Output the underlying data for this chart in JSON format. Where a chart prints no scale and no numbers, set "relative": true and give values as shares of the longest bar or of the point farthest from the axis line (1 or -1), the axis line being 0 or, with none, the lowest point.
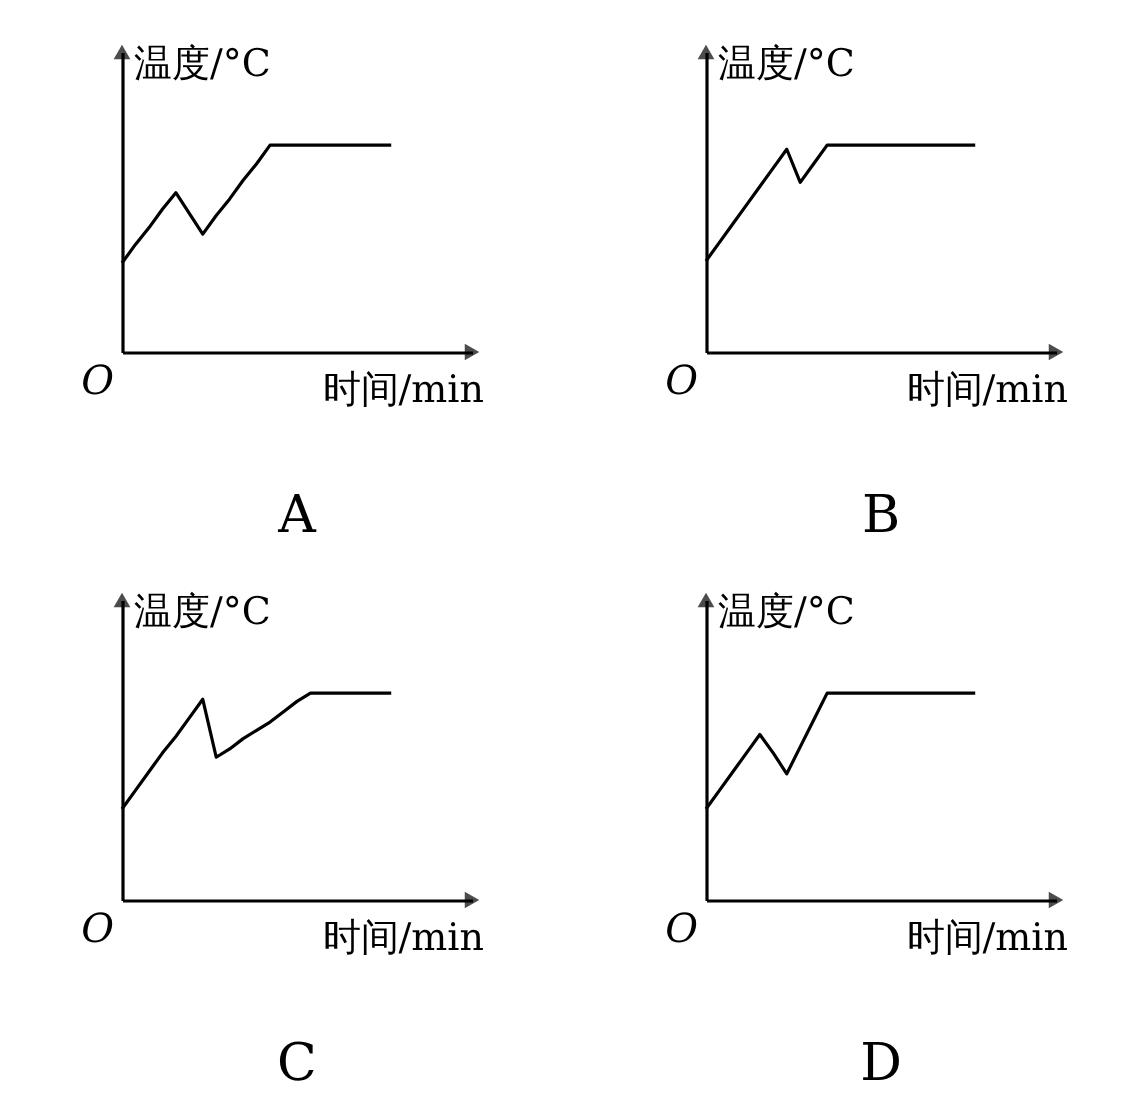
{
  "chart_data": [
    {
      "type": "line",
      "title": "A",
      "xlabel": "时间/min",
      "ylabel": "温度/°C",
      "annotations": [
        "O"
      ],
      "relative": true,
      "tick_labels": false,
      "categories": [
        null,
        null,
        null,
        null,
        null,
        null,
        null,
        null,
        null,
        null,
        null,
        null,
        null,
        null,
        null,
        null,
        null,
        null,
        null,
        null,
        null
      ],
      "series": [
        {
          "color": "#000000",
          "values": [
            0.43,
            0.52,
            0.6,
            0.69,
            0.77,
            0.67,
            0.57,
            0.66,
            0.74,
            0.83,
            0.91,
            1,
            1,
            1,
            1,
            1,
            1,
            1,
            1,
            1,
            1
          ]
        }
      ]
    },
    {
      "type": "line",
      "title": "B",
      "xlabel": "时间/min",
      "ylabel": "温度/°C",
      "annotations": [
        "O"
      ],
      "relative": true,
      "tick_labels": false,
      "categories": [
        null,
        null,
        null,
        null,
        null,
        null,
        null,
        null,
        null,
        null,
        null,
        null,
        null,
        null,
        null,
        null,
        null,
        null,
        null,
        null,
        null
      ],
      "series": [
        {
          "color": "#000000",
          "values": [
            0.44,
            0.53,
            0.62,
            0.71,
            0.8,
            0.89,
            0.98,
            0.82,
            0.91,
            1,
            1,
            1,
            1,
            1,
            1,
            1,
            1,
            1,
            1,
            1,
            1
          ]
        }
      ]
    },
    {
      "type": "line",
      "title": "C",
      "xlabel": "时间/min",
      "ylabel": "温度/°C",
      "annotations": [
        "O"
      ],
      "relative": true,
      "tick_labels": false,
      "categories": [
        null,
        null,
        null,
        null,
        null,
        null,
        null,
        null,
        null,
        null,
        null,
        null,
        null,
        null,
        null,
        null,
        null,
        null,
        null,
        null,
        null
      ],
      "series": [
        {
          "color": "#000000",
          "values": [
            0.44,
            0.53,
            0.62,
            0.71,
            0.79,
            0.88,
            0.97,
            0.69,
            0.73,
            0.78,
            0.82,
            0.86,
            0.91,
            0.96,
            1,
            1,
            1,
            1,
            1,
            1,
            1
          ]
        }
      ]
    },
    {
      "type": "line",
      "title": "D",
      "xlabel": "时间/min",
      "ylabel": "温度/°C",
      "annotations": [
        "O"
      ],
      "relative": true,
      "tick_labels": false,
      "categories": [
        null,
        null,
        null,
        null,
        null,
        null,
        null,
        null,
        null,
        null,
        null,
        null,
        null,
        null,
        null,
        null,
        null,
        null,
        null,
        null,
        null
      ],
      "series": [
        {
          "color": "#000000",
          "values": [
            0.44,
            0.53,
            0.62,
            0.71,
            0.8,
            0.71,
            0.61,
            0.74,
            0.87,
            1,
            1,
            1,
            1,
            1,
            1,
            1,
            1,
            1,
            1,
            1,
            1
          ]
        }
      ]
    }
  ]
}
